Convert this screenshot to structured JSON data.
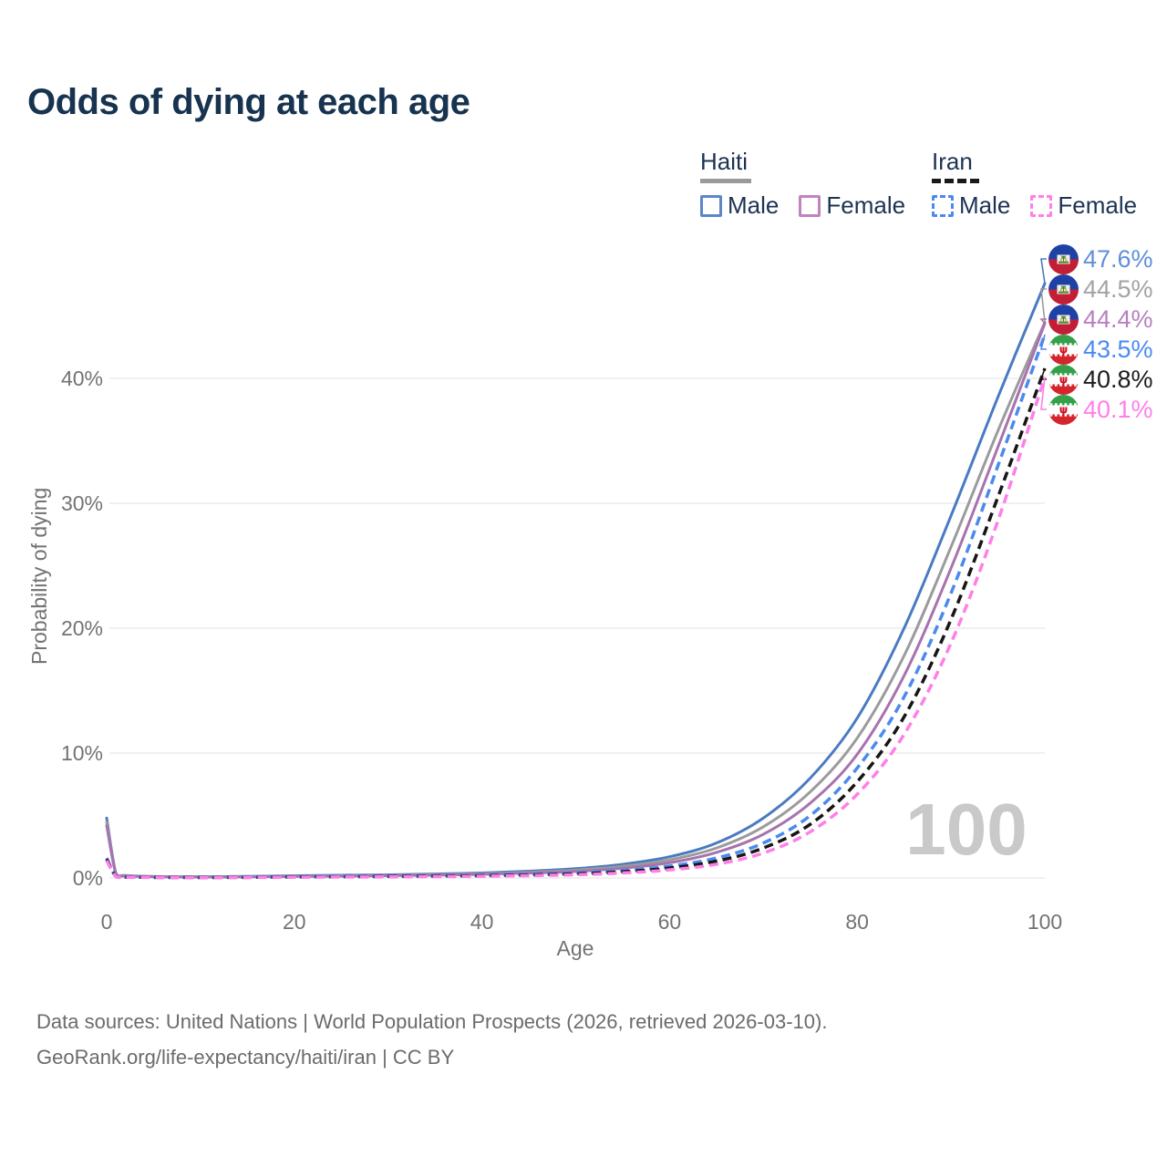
{
  "title": "Odds of dying at each age",
  "watermark": "100",
  "legend": {
    "haiti": {
      "label": "Haiti",
      "male_label": "Male",
      "female_label": "Female"
    },
    "iran": {
      "label": "Iran",
      "male_label": "Male",
      "female_label": "Female"
    }
  },
  "axes": {
    "x": {
      "title": "Age",
      "tick_values": [
        0,
        20,
        40,
        60,
        80,
        100
      ]
    },
    "y": {
      "title": "Probability of dying",
      "tick_labels": [
        "0%",
        "10%",
        "20%",
        "30%",
        "40%"
      ],
      "tick_values": [
        0,
        10,
        20,
        30,
        40
      ]
    }
  },
  "footer": {
    "line1": "Data sources: United Nations | World Population Prospects (2026, retrieved 2026-03-10).",
    "line2": "GeoRank.org/life-expectancy/haiti/iran | CC BY"
  },
  "colors": {
    "title_text": "#17334f",
    "legend_text": "#1c3352",
    "axis_text": "#737373",
    "gridline": "#ececec",
    "watermark": "#c9c9c9",
    "footer_text": "#6b6b6b",
    "haiti_underline": "#9a9a9a",
    "iran_underline": "#1a1a1a",
    "haiti_flag_blue": "#1e41a6",
    "haiti_flag_red": "#c21e36",
    "iran_flag_green": "#35a04a",
    "iran_flag_red": "#d5252c"
  },
  "chart_data": {
    "type": "line",
    "title": "Odds of dying at each age",
    "xlabel": "Age",
    "ylabel": "Probability of dying",
    "xlim": [
      0,
      100
    ],
    "ylim": [
      0,
      48
    ],
    "grid": "horizontal",
    "legend_position": "top-right",
    "x": [
      0,
      1,
      2,
      5,
      10,
      15,
      20,
      25,
      30,
      35,
      40,
      45,
      50,
      55,
      60,
      65,
      70,
      75,
      80,
      85,
      90,
      95,
      100
    ],
    "series": [
      {
        "name": "Haiti Male",
        "country": "Haiti",
        "sex": "Male",
        "flag": "haiti",
        "style": "solid",
        "color": "#4a7bc0",
        "label_color": "#5e8fd8",
        "end_label": "47.6%",
        "end_value": 47.6,
        "values": [
          4.8,
          0.35,
          0.2,
          0.12,
          0.1,
          0.13,
          0.18,
          0.22,
          0.26,
          0.32,
          0.4,
          0.55,
          0.75,
          1.1,
          1.7,
          2.8,
          4.8,
          8.0,
          12.8,
          20.0,
          29.0,
          38.5,
          47.6
        ]
      },
      {
        "name": "Haiti Both sexes",
        "country": "Haiti",
        "sex": "Both",
        "flag": "haiti",
        "style": "solid",
        "color": "#9b9b9b",
        "label_color": "#a3a3a3",
        "end_label": "44.5%",
        "end_value": 44.5,
        "values": [
          4.5,
          0.32,
          0.18,
          0.11,
          0.09,
          0.11,
          0.15,
          0.18,
          0.22,
          0.27,
          0.34,
          0.46,
          0.63,
          0.93,
          1.45,
          2.4,
          4.1,
          6.9,
          11.2,
          17.8,
          26.5,
          35.8,
          44.5
        ]
      },
      {
        "name": "Haiti Female",
        "country": "Haiti",
        "sex": "Female",
        "flag": "haiti",
        "style": "solid",
        "color": "#a872ae",
        "label_color": "#b97fc0",
        "end_label": "44.4%",
        "end_value": 44.4,
        "values": [
          4.2,
          0.3,
          0.16,
          0.1,
          0.08,
          0.09,
          0.13,
          0.15,
          0.19,
          0.23,
          0.29,
          0.39,
          0.52,
          0.78,
          1.22,
          2.05,
          3.5,
          6.0,
          9.9,
          16.2,
          24.8,
          34.5,
          44.4
        ]
      },
      {
        "name": "Iran Male",
        "country": "Iran",
        "sex": "Male",
        "flag": "iran",
        "style": "dashed",
        "color": "#4a8af0",
        "label_color": "#4a8af0",
        "end_label": "43.5%",
        "end_value": 43.5,
        "values": [
          1.6,
          0.12,
          0.07,
          0.05,
          0.05,
          0.07,
          0.1,
          0.12,
          0.15,
          0.18,
          0.22,
          0.29,
          0.4,
          0.6,
          0.95,
          1.6,
          2.8,
          5.0,
          8.8,
          14.5,
          22.8,
          33.0,
          43.5
        ]
      },
      {
        "name": "Iran Both sexes",
        "country": "Iran",
        "sex": "Both",
        "flag": "iran",
        "style": "dashed",
        "color": "#161616",
        "label_color": "#1c1c1c",
        "end_label": "40.8%",
        "end_value": 40.8,
        "values": [
          1.5,
          0.11,
          0.06,
          0.05,
          0.04,
          0.05,
          0.08,
          0.1,
          0.12,
          0.15,
          0.18,
          0.24,
          0.33,
          0.5,
          0.8,
          1.35,
          2.4,
          4.3,
          7.7,
          12.9,
          20.7,
          30.5,
          40.8
        ]
      },
      {
        "name": "Iran Female",
        "country": "Iran",
        "sex": "Female",
        "flag": "iran",
        "style": "dashed",
        "color": "#ff7fe8",
        "label_color": "#ff7fe8",
        "end_label": "40.1%",
        "end_value": 40.1,
        "values": [
          1.4,
          0.1,
          0.06,
          0.04,
          0.03,
          0.04,
          0.06,
          0.08,
          0.09,
          0.11,
          0.14,
          0.19,
          0.26,
          0.4,
          0.65,
          1.1,
          2.0,
          3.7,
          6.7,
          11.5,
          18.8,
          28.6,
          40.1
        ]
      }
    ]
  }
}
